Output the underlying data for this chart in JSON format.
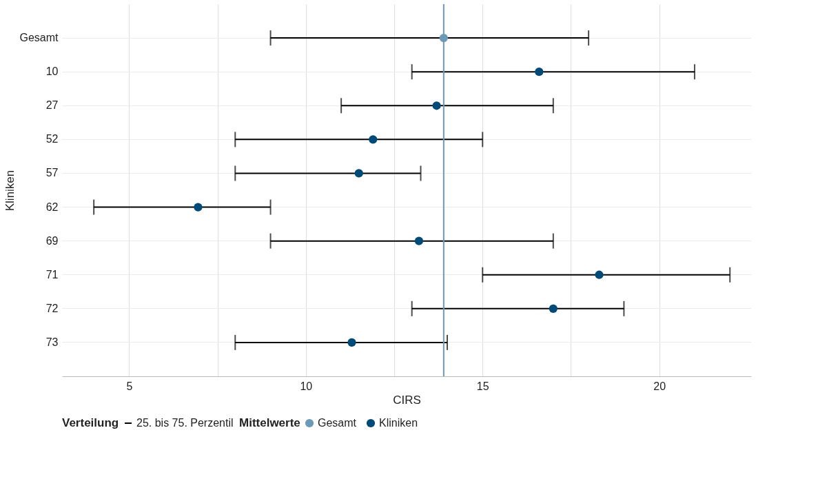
{
  "chart_data": {
    "type": "scatter",
    "orientation": "horizontal",
    "xlabel": "CIRS",
    "ylabel": "Kliniken",
    "legend_title": "Mittelwerte",
    "categories": [
      "Gesamt",
      "10",
      "27",
      "52",
      "57",
      "62",
      "69",
      "71",
      "72",
      "73"
    ],
    "series": [
      {
        "name": "Gesamt",
        "color": "#6b9ab8",
        "values": [
          13.9,
          null,
          null,
          null,
          null,
          null,
          null,
          null,
          null,
          null
        ],
        "errors": [
          [
            9,
            18
          ],
          null,
          null,
          null,
          null,
          null,
          null,
          null,
          null,
          null
        ]
      },
      {
        "name": "Kliniken",
        "color": "#004a77",
        "values": [
          null,
          16.6,
          13.7,
          11.9,
          11.5,
          6.95,
          13.2,
          18.3,
          17.0,
          11.3
        ],
        "errors": [
          null,
          [
            13,
            21
          ],
          [
            11,
            17
          ],
          [
            8,
            15
          ],
          [
            8,
            13.25
          ],
          [
            4,
            9
          ],
          [
            9,
            17
          ],
          [
            15,
            22
          ],
          [
            13,
            19
          ],
          [
            8,
            14
          ]
        ]
      }
    ],
    "xlim": [
      3.1,
      22.6
    ],
    "xticks": [
      5,
      {
        "value": 7.5,
        "label": null
      },
      10,
      {
        "value": 12.5,
        "label": null
      },
      15,
      {
        "value": 17.5,
        "label": null
      },
      20
    ],
    "ref_lines": [
      {
        "axis": "x",
        "value": 13.9,
        "color": "#6b9ab8"
      }
    ],
    "annotations": [
      "Verteilung",
      "25. bis 75. Perzentil"
    ],
    "grid": true,
    "legend": "bottom",
    "marker": "circle"
  }
}
